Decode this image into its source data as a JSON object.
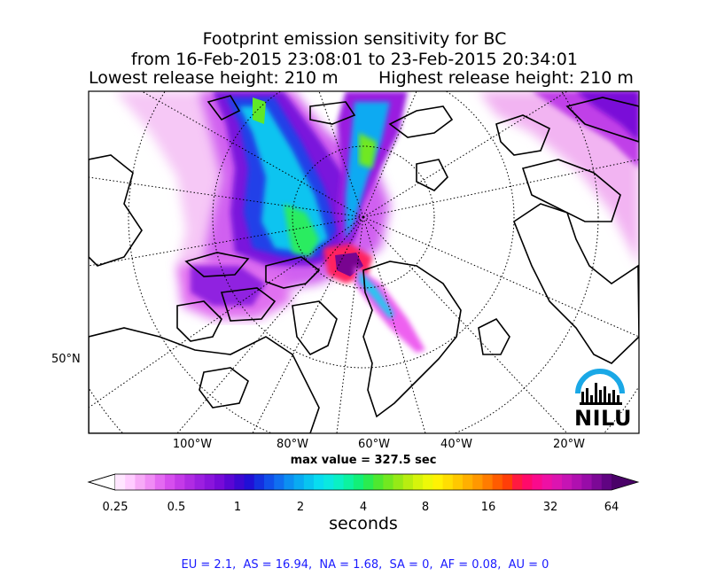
{
  "title": {
    "line1": "Footprint emission sensitivity for BC",
    "line2": "from 16-Feb-2015 23:08:01 to 23-Feb-2015 20:34:01",
    "lowest": "Lowest release height: 210 m",
    "highest": "Highest release height: 210 m"
  },
  "map": {
    "lat_labels": [
      "50°N"
    ],
    "lon_labels": [
      "100°W",
      "80°W",
      "60°W",
      "40°W",
      "20°W"
    ],
    "max_value": "max value = 327.5 sec",
    "logo_text": "NILU"
  },
  "colorbar": {
    "ticks": [
      "0.25",
      "0.5",
      "1",
      "2",
      "4",
      "8",
      "16",
      "32",
      "64"
    ],
    "label": "seconds",
    "colors": [
      "#ffe6ff",
      "#ffccff",
      "#f7aaf7",
      "#f08cf5",
      "#e46af2",
      "#d64eee",
      "#c43ae8",
      "#b02be3",
      "#9c1fe0",
      "#8a14dc",
      "#760ad8",
      "#5a06d4",
      "#3c08d2",
      "#2010d6",
      "#1430e0",
      "#1150ea",
      "#106ff0",
      "#0c8ff2",
      "#09aaf2",
      "#08c4f0",
      "#08dcf0",
      "#0ae8e0",
      "#0af0c4",
      "#0cf2a0",
      "#12f078",
      "#2aec50",
      "#4ee830",
      "#72e820",
      "#96ea16",
      "#b8ee10",
      "#d6f40c",
      "#eef808",
      "#fff204",
      "#ffde02",
      "#ffc800",
      "#ffb000",
      "#ff9800",
      "#ff7c00",
      "#ff5c00",
      "#ff3e08",
      "#ff1a40",
      "#ff0a6a",
      "#fa0a8c",
      "#ee10a4",
      "#dc14b0",
      "#c614b4",
      "#b010b0",
      "#980ca8",
      "#7c0896",
      "#600482"
    ]
  },
  "stats": "EU = 2.1,  AS = 16.94,  NA = 1.68,  SA = 0,  AF = 0.08,  AU = 0"
}
